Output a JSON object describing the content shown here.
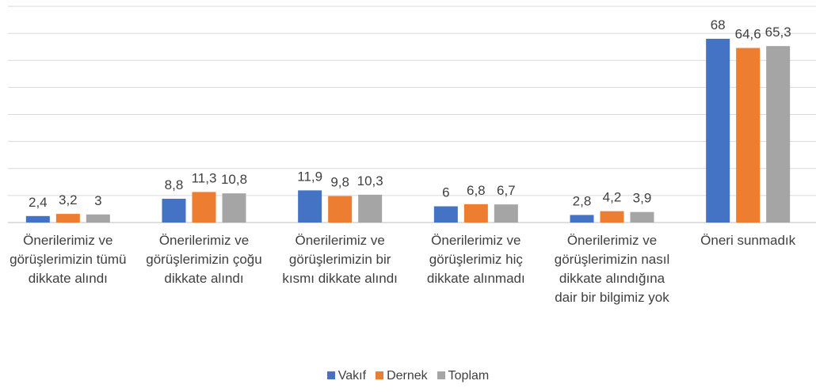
{
  "chart_data": {
    "type": "bar",
    "categories": [
      "Önerilerimiz ve görüşlerimizin tümü dikkate alındı",
      "Önerilerimiz ve görüşlerimizin çoğu dikkate alındı",
      "Önerilerimiz ve görüşlerimizin bir kısmı dikkate alındı",
      "Önerilerimiz ve görüşlerimiz hiç dikkate alınmadı",
      "Önerilerimiz ve görüşlerimizin nasıl dikkate alındığına dair bir bilgimiz yok",
      "Öneri sunmadık"
    ],
    "series": [
      {
        "name": "Vakıf",
        "color": "#4472c4",
        "values": [
          2.4,
          8.8,
          11.9,
          6,
          2.8,
          68
        ],
        "value_labels": [
          "2,4",
          "8,8",
          "11,9",
          "6",
          "2,8",
          "68"
        ]
      },
      {
        "name": "Dernek",
        "color": "#ed7d31",
        "values": [
          3.2,
          11.3,
          9.8,
          6.8,
          4.2,
          64.6
        ],
        "value_labels": [
          "3,2",
          "11,3",
          "9,8",
          "6,8",
          "4,2",
          "64,6"
        ]
      },
      {
        "name": "Toplam",
        "color": "#a5a5a5",
        "values": [
          3,
          10.8,
          10.3,
          6.7,
          3.9,
          65.3
        ],
        "value_labels": [
          "3",
          "10,8",
          "10,3",
          "6,7",
          "3,9",
          "65,3"
        ]
      }
    ],
    "ylim": [
      0,
      80
    ],
    "yticks": [
      0,
      10,
      20,
      30,
      40,
      50,
      60,
      70,
      80
    ],
    "grid": true
  }
}
